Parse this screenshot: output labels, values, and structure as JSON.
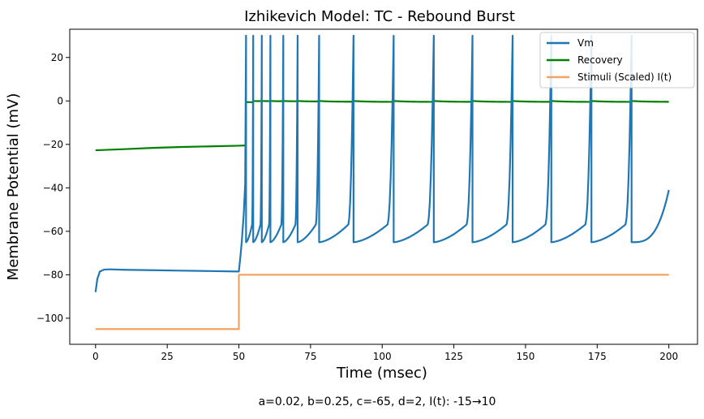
{
  "chart_data": {
    "type": "line",
    "title": "Izhikevich Model: TC - Rebound Burst",
    "xlabel": "Time (msec)",
    "ylabel": "Membrane Potential (mV)",
    "caption": "a=0.02, b=0.25, c=-65, d=2, I(t): -15→10",
    "xlim": [
      -9,
      210
    ],
    "ylim": [
      -112,
      33
    ],
    "xticks": [
      0,
      25,
      50,
      75,
      100,
      125,
      150,
      175,
      200
    ],
    "yticks": [
      -100,
      -80,
      -60,
      -40,
      -20,
      0,
      20
    ],
    "grid": false,
    "legend": {
      "placement": "top-right",
      "entries": [
        "Vm",
        "Recovery",
        "Stimuli (Scaled) I(t)"
      ]
    },
    "spike_times": [
      52.5,
      55,
      58,
      61,
      65.5,
      70.5,
      78,
      90,
      104,
      118,
      131.5,
      145.5,
      159,
      173,
      187
    ],
    "series": [
      {
        "name": "Vm",
        "color": "#1f77b4",
        "x": [
          0,
          0.6,
          1.5,
          3,
          5,
          10,
          20,
          30,
          40,
          50,
          50.5,
          51,
          51.7,
          52.2,
          52.5
        ],
        "y": [
          -88,
          -82,
          -78.5,
          -77.6,
          -77.5,
          -77.7,
          -77.9,
          -78.1,
          -78.3,
          -78.5,
          -72,
          -65,
          -52,
          -38,
          30
        ]
      },
      {
        "name": "Recovery",
        "color": "#008000",
        "x": [
          0,
          10,
          20,
          30,
          40,
          50,
          52.5
        ],
        "y": [
          -22.7,
          -22.2,
          -21.6,
          -21.2,
          -20.9,
          -20.6,
          -20.5
        ]
      },
      {
        "name": "Stimuli (Scaled) I(t)",
        "color": "#f4a460",
        "x": [
          0,
          50,
          50,
          200
        ],
        "y": [
          -105,
          -105,
          -80,
          -80
        ]
      }
    ]
  }
}
